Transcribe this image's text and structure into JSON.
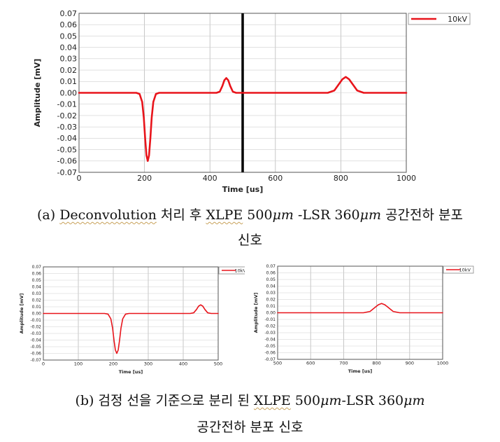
{
  "chart_data": [
    {
      "type": "line",
      "title": "",
      "xlabel": "Time [us]",
      "ylabel": "Amplitude [mV]",
      "xlim": [
        0,
        1000
      ],
      "ylim": [
        -0.07,
        0.07
      ],
      "x_ticks": [
        0,
        200,
        400,
        600,
        800,
        1000
      ],
      "y_ticks": [
        0.07,
        0.06,
        0.05,
        0.04,
        0.03,
        0.02,
        0.01,
        0.0,
        -0.01,
        -0.02,
        -0.03,
        -0.04,
        -0.05,
        -0.06,
        -0.07
      ],
      "grid": true,
      "legend_position": "top-right",
      "divider_x": 500,
      "series": [
        {
          "name": "10kV",
          "color": "#e8141b",
          "x": [
            0,
            175,
            185,
            193,
            198,
            202,
            206,
            210,
            214,
            218,
            222,
            227,
            235,
            245,
            260,
            420,
            430,
            438,
            444,
            450,
            456,
            462,
            470,
            480,
            760,
            780,
            795,
            805,
            815,
            825,
            835,
            850,
            870,
            1000
          ],
          "y": [
            0,
            0,
            -0.001,
            -0.008,
            -0.022,
            -0.04,
            -0.055,
            -0.06,
            -0.055,
            -0.04,
            -0.022,
            -0.008,
            -0.001,
            0,
            0,
            0,
            0.001,
            0.006,
            0.011,
            0.013,
            0.011,
            0.006,
            0.001,
            0,
            0,
            0.002,
            0.008,
            0.012,
            0.014,
            0.012,
            0.008,
            0.002,
            0,
            0
          ]
        }
      ]
    },
    {
      "type": "line",
      "title": "",
      "xlabel": "Time [us]",
      "ylabel": "Amplitude [mV]",
      "xlim": [
        0,
        500
      ],
      "ylim": [
        -0.07,
        0.07
      ],
      "x_ticks": [
        0,
        100,
        200,
        300,
        400,
        500
      ],
      "y_ticks": [
        0.07,
        0.06,
        0.05,
        0.04,
        0.03,
        0.02,
        0.01,
        0.0,
        -0.01,
        -0.02,
        -0.03,
        -0.04,
        -0.05,
        -0.06,
        -0.07
      ],
      "grid": true,
      "legend_position": "top-right",
      "series": [
        {
          "name": "10kV",
          "color": "#e8141b",
          "x": [
            0,
            175,
            185,
            193,
            198,
            202,
            206,
            210,
            214,
            218,
            222,
            227,
            235,
            245,
            260,
            420,
            430,
            438,
            444,
            450,
            456,
            462,
            470,
            480,
            500
          ],
          "y": [
            0,
            0,
            -0.001,
            -0.008,
            -0.022,
            -0.04,
            -0.055,
            -0.06,
            -0.055,
            -0.04,
            -0.022,
            -0.008,
            -0.001,
            0,
            0,
            0,
            0.001,
            0.006,
            0.011,
            0.013,
            0.011,
            0.006,
            0.001,
            0,
            0
          ]
        }
      ]
    },
    {
      "type": "line",
      "title": "",
      "xlabel": "Time [us]",
      "ylabel": "Amplitude [mV]",
      "xlim": [
        500,
        1000
      ],
      "ylim": [
        -0.07,
        0.07
      ],
      "x_ticks": [
        500,
        600,
        700,
        800,
        900,
        1000
      ],
      "y_ticks": [
        0.07,
        0.06,
        0.05,
        0.04,
        0.03,
        0.02,
        0.01,
        0.0,
        -0.01,
        -0.02,
        -0.03,
        -0.04,
        -0.05,
        -0.06,
        -0.07
      ],
      "grid": true,
      "legend_position": "top-right",
      "series": [
        {
          "name": "10kV",
          "color": "#e8141b",
          "x": [
            500,
            760,
            780,
            795,
            805,
            815,
            825,
            835,
            850,
            870,
            1000
          ],
          "y": [
            0,
            0,
            0.002,
            0.008,
            0.012,
            0.014,
            0.012,
            0.008,
            0.002,
            0,
            0
          ]
        }
      ]
    }
  ],
  "captions": {
    "a_line1_pre": "(a) ",
    "a_deconv": "Deconvolution",
    "a_line1_mid": " 처리 후 ",
    "a_xlpe": "XLPE",
    "a_500": " 500",
    "a_um1": "μm",
    "a_lsr": " -LSR",
    "a_360": " 360",
    "a_um2": "μm",
    "a_line1_end": " 공간전하 분포",
    "a_line2": "신호",
    "b_line1_pre": "(b)  검정 선을 기준으로 분리 된 ",
    "b_xlpe": "XLPE",
    "b_500": " 500",
    "b_um1": "μm",
    "b_lsr": "-LSR",
    "b_360": " 360",
    "b_um2": "μm",
    "b_line2": "공간전하 분포 신호"
  }
}
